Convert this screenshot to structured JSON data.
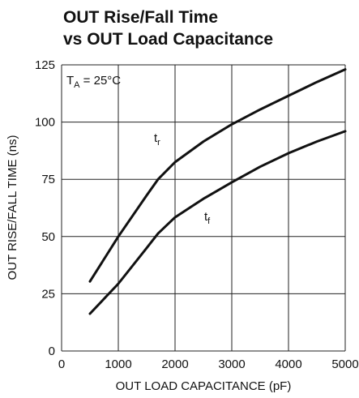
{
  "chart_data": {
    "type": "line",
    "title": [
      "OUT Rise/Fall Time",
      "vs OUT Load Capacitance"
    ],
    "x_label": "OUT LOAD CAPACITANCE (pF)",
    "y_label": "OUT RISE/FALL TIME (ns)",
    "annotation": [
      "T",
      "A",
      " = 25°C"
    ],
    "x": [
      500,
      1000,
      1500,
      1700,
      2000,
      2500,
      3000,
      3500,
      4000,
      4500,
      5000
    ],
    "series": [
      {
        "name": [
          "t",
          "r"
        ],
        "color": "#111111",
        "values": [
          30.4,
          50,
          68,
          75,
          82.5,
          91.5,
          99,
          105.5,
          111.5,
          117.5,
          123
        ]
      },
      {
        "name": [
          "t",
          "f"
        ],
        "color": "#111111",
        "values": [
          16.3,
          29.4,
          45,
          51.3,
          58.4,
          66.5,
          73.7,
          80.5,
          86.4,
          91.5,
          96
        ]
      }
    ],
    "xlim": [
      0,
      5000
    ],
    "xticks": [
      0,
      1000,
      2000,
      3000,
      4000,
      5000
    ],
    "ylim": [
      0,
      125
    ],
    "yticks": [
      0,
      25,
      50,
      75,
      100,
      125
    ],
    "grid": true
  }
}
